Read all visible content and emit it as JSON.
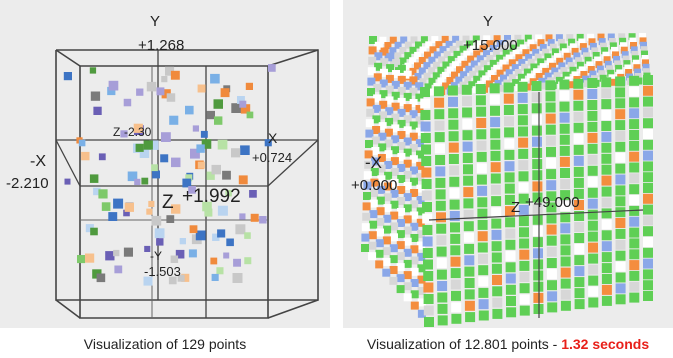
{
  "left_plot": {
    "axis_y": "Y",
    "y_value": "+1.268",
    "axis_x": "X",
    "x_value": "+0.724",
    "axis_neg_x": "-X",
    "neg_x_value": "-2.210",
    "axis_z": "Z",
    "z_value": "+1.992",
    "axis_z_back": "Z",
    "z_back_value": "-2.30",
    "axis_neg_y": "-Y",
    "neg_y_value": "-1.503",
    "point_count": 129,
    "point_colors": [
      "#4f9a3e",
      "#7ec96a",
      "#b7e2a5",
      "#3d74c4",
      "#7ab0e6",
      "#b9d4f0",
      "#6a5fb5",
      "#a79ed8",
      "#7a7a7a",
      "#c8c8c8",
      "#f08a3c",
      "#f7c08c"
    ]
  },
  "right_plot": {
    "axis_y": "Y",
    "y_value": "+15.000",
    "axis_neg_x": "-X",
    "neg_x_value": "+0.000",
    "axis_z": "Z",
    "z_value": "+49.000",
    "point_count": 12801,
    "point_colors": [
      "#5fcf55",
      "#ffffff",
      "#f48d3e",
      "#8aa7e8",
      "#d7d7d7"
    ]
  },
  "captions": {
    "left": "Visualization of 129 points",
    "right_prefix": "Visualization of 12.801 points - ",
    "right_highlight": "1.32 seconds"
  }
}
